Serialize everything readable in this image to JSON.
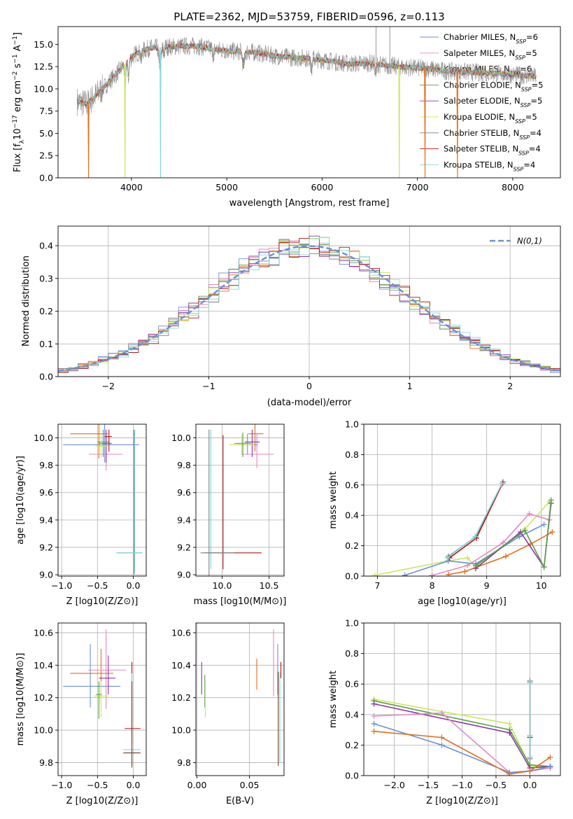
{
  "colors": {
    "blue": "#6a8fd8",
    "orange": "#e0701c",
    "green": "#5a9e48",
    "red": "#b81414",
    "purple": "#8a35a8",
    "brown": "#6b3e24",
    "pink": "#e586c4",
    "grey": "#7d7d7d",
    "lime": "#c8e85a",
    "cyan": "#7fd9e0",
    "gridline": "#b0b0b0"
  },
  "chart_data": [
    {
      "id": "spectrum",
      "type": "line",
      "title": "PLATE=2362, MJD=53759, FIBERID=0596, z=0.113",
      "xlabel": "wavelength [Angstrom, rest frame]",
      "ylabel_parts": [
        "Flux [f",
        "λ",
        "10",
        "−17",
        " erg cm",
        "−2",
        " s",
        "−1",
        " A",
        "−1",
        "]"
      ],
      "xlim": [
        3230,
        8500
      ],
      "ylim": [
        0,
        17
      ],
      "xticks": [
        4000,
        5000,
        6000,
        7000,
        8000
      ],
      "yticks": [
        0.0,
        2.5,
        5.0,
        7.5,
        10.0,
        12.5,
        15.0
      ],
      "grid": false,
      "legend_position": "upper-right",
      "series_color_keys": [
        "blue",
        "pink",
        "orange",
        "green",
        "purple",
        "lime",
        "grey",
        "red",
        "cyan"
      ],
      "legend": [
        {
          "base": "Chabrier MILES, N",
          "sub": "SSP",
          "val": "=6",
          "color": "blue"
        },
        {
          "base": "Salpeter MILES, N",
          "sub": "SSP",
          "val": "=5",
          "color": "pink"
        },
        {
          "base": "Kroupa MILES, N",
          "sub": "SSP",
          "val": "=6",
          "color": "orange"
        },
        {
          "base": "Chabrier ELODIE, N",
          "sub": "SSP",
          "val": "=5",
          "color": "green"
        },
        {
          "base": "Salpeter ELODIE, N",
          "sub": "SSP",
          "val": "=5",
          "color": "purple"
        },
        {
          "base": "Kroupa ELODIE, N",
          "sub": "SSP",
          "val": "=5",
          "color": "lime"
        },
        {
          "base": "Chabrier STELIB, N",
          "sub": "SSP",
          "val": "=4",
          "color": "grey"
        },
        {
          "base": "Salpeter STELIB, N",
          "sub": "SSP",
          "val": "=4",
          "color": "red"
        },
        {
          "base": "Kroupa STELIB, N",
          "sub": "SSP",
          "val": "=4",
          "color": "cyan"
        }
      ],
      "continuum_x": [
        3430,
        3530,
        3650,
        3750,
        3850,
        3950,
        4050,
        4200,
        4350,
        4500,
        4700,
        4900,
        5100,
        5300,
        5500,
        5700,
        5900,
        6100,
        6300,
        6500,
        6700,
        6900,
        7100,
        7300,
        7500,
        7700,
        7900,
        8100,
        8240
      ],
      "continuum_y": [
        8.6,
        8.3,
        9.5,
        10.6,
        11.8,
        13.0,
        14.0,
        14.6,
        14.7,
        14.8,
        14.8,
        14.4,
        14.2,
        14.1,
        13.7,
        13.5,
        13.4,
        13.1,
        12.8,
        12.9,
        12.6,
        12.4,
        12.3,
        12.0,
        11.9,
        11.8,
        11.7,
        11.5,
        11.4
      ],
      "drops": [
        {
          "x": 3550,
          "color": "orange"
        },
        {
          "x": 3933,
          "color": "lime"
        },
        {
          "x": 4305,
          "color": "cyan"
        },
        {
          "x": 6810,
          "color": "lime"
        },
        {
          "x": 7080,
          "color": "orange"
        },
        {
          "x": 7420,
          "color": "orange"
        }
      ],
      "spikes": [
        {
          "x": 6565,
          "top": 17.0,
          "color": "grey"
        },
        {
          "x": 6710,
          "top": 17.0,
          "color": "grey"
        },
        {
          "x": 4862,
          "top": 14.6,
          "color": "grey"
        }
      ]
    },
    {
      "id": "residuals",
      "type": "step",
      "xlabel": "(data-model)/error",
      "ylabel": "Normed distribution",
      "xlim": [
        -2.5,
        2.5
      ],
      "ylim": [
        0,
        0.46
      ],
      "xticks": [
        -2,
        -1,
        0,
        1,
        2
      ],
      "xtick_labels": [
        "−2",
        "−1",
        "0",
        "1",
        "2"
      ],
      "yticks": [
        0.0,
        0.1,
        0.2,
        0.3,
        0.4
      ],
      "ytick_labels": [
        "0.0",
        "0.1",
        "0.2",
        "0.3",
        "0.4"
      ],
      "grid": true,
      "legend_position": "upper-right",
      "legend_label": "N(0,1)",
      "bin_width": 0.1,
      "series_color_keys": [
        "blue",
        "pink",
        "orange",
        "green",
        "purple",
        "lime",
        "grey",
        "red",
        "cyan"
      ],
      "gaussian": {
        "mean": 0,
        "sigma": 1,
        "color": "blue"
      }
    },
    {
      "id": "age_vs_z",
      "type": "scatter",
      "xlabel": "Z [log10(Z/Z⊙)]",
      "ylabel": "age  [log10(age/yr)]",
      "xlim": [
        -1.05,
        0.18
      ],
      "ylim": [
        8.99,
        10.1
      ],
      "xticks": [
        -1.0,
        -0.5,
        0.0
      ],
      "xtick_labels": [
        "−1.0",
        "−0.5",
        "0.0"
      ],
      "yticks": [
        9.0,
        9.2,
        9.4,
        9.6,
        9.8,
        10.0
      ],
      "ytick_labels": [
        "9.0",
        "9.2",
        "9.4",
        "9.6",
        "9.8",
        "10.0"
      ],
      "grid": true,
      "points": [
        {
          "c": "blue",
          "x": -0.4,
          "y": 9.95,
          "x0": -0.98,
          "x1": 0.08,
          "y0": 9.82,
          "y1": 10.1
        },
        {
          "c": "orange",
          "x": -0.48,
          "y": 10.03,
          "x0": -0.88,
          "x1": -0.35,
          "y0": 9.85,
          "y1": 10.12
        },
        {
          "c": "pink",
          "x": -0.38,
          "y": 9.88,
          "x0": -0.62,
          "x1": -0.15,
          "y0": 9.76,
          "y1": 10.03
        },
        {
          "c": "purple",
          "x": -0.38,
          "y": 9.96,
          "x0": -0.48,
          "x1": -0.3,
          "y0": 9.82,
          "y1": 10.06
        },
        {
          "c": "green",
          "x": -0.42,
          "y": 9.97,
          "x0": -0.5,
          "x1": -0.33,
          "y0": 9.86,
          "y1": 10.06
        },
        {
          "c": "lime",
          "x": -0.45,
          "y": 9.94,
          "x0": -0.53,
          "x1": -0.36,
          "y0": 9.86,
          "y1": 10.03
        },
        {
          "c": "red",
          "x": -0.34,
          "y": 10.01,
          "x0": -0.4,
          "x1": -0.3,
          "y0": 9.9,
          "y1": 10.06
        },
        {
          "c": "grey",
          "x": 0.01,
          "y": 9.16,
          "x0": -0.22,
          "x1": 0.12,
          "y0": 9.0,
          "y1": 10.06
        },
        {
          "c": "cyan",
          "x": 0.02,
          "y": 9.16,
          "x0": -0.24,
          "x1": 0.13,
          "y0": 9.02,
          "y1": 10.06
        }
      ]
    },
    {
      "id": "age_vs_mass",
      "type": "scatter",
      "xlabel": "mass [log10(M/M⊙)]",
      "ylabel": "",
      "xlim": [
        9.72,
        10.66
      ],
      "ylim": [
        8.99,
        10.1
      ],
      "xticks": [
        10.0,
        10.5
      ],
      "xtick_labels": [
        "10.0",
        "10.5"
      ],
      "yticks": [
        9.0,
        9.2,
        9.4,
        9.6,
        9.8,
        10.0
      ],
      "ytick_labels": [
        "9.0",
        "9.2",
        "9.4",
        "9.6",
        "9.8",
        "10.0"
      ],
      "grid": true,
      "points": [
        {
          "c": "blue",
          "x": 10.27,
          "y": 9.95,
          "x0": 10.16,
          "x1": 10.38,
          "y0": 9.88,
          "y1": 10.03
        },
        {
          "c": "orange",
          "x": 10.35,
          "y": 10.03,
          "x0": 10.28,
          "x1": 10.44,
          "y0": 9.9,
          "y1": 10.12
        },
        {
          "c": "pink",
          "x": 10.37,
          "y": 9.88,
          "x0": 10.2,
          "x1": 10.55,
          "y0": 9.78,
          "y1": 10.03
        },
        {
          "c": "purple",
          "x": 10.32,
          "y": 9.97,
          "x0": 10.24,
          "x1": 10.4,
          "y0": 9.86,
          "y1": 10.06
        },
        {
          "c": "lime",
          "x": 10.21,
          "y": 9.95,
          "x0": 10.08,
          "x1": 10.34,
          "y0": 9.88,
          "y1": 10.02
        },
        {
          "c": "green",
          "x": 10.22,
          "y": 9.96,
          "x0": 10.13,
          "x1": 10.31,
          "y0": 9.86,
          "y1": 10.04
        },
        {
          "c": "red",
          "x": 10.01,
          "y": 9.16,
          "x0": 9.82,
          "x1": 10.42,
          "y0": 9.04,
          "y1": 10.02
        },
        {
          "c": "cyan",
          "x": 9.88,
          "y": 9.16,
          "x0": 9.8,
          "x1": 10.13,
          "y0": 9.04,
          "y1": 10.06
        },
        {
          "c": "grey",
          "x": 9.86,
          "y": 9.16,
          "x0": 9.77,
          "x1": 10.13,
          "y0": 8.99,
          "y1": 10.06
        }
      ]
    },
    {
      "id": "weight_vs_age",
      "type": "line",
      "xlabel": "age  [log10(age/yr)]",
      "ylabel": "mass weight",
      "xlim": [
        6.75,
        10.35
      ],
      "ylim": [
        0,
        1.0
      ],
      "xticks": [
        7,
        8,
        9,
        10
      ],
      "xtick_labels": [
        "7",
        "8",
        "9",
        "10"
      ],
      "yticks": [
        0.0,
        0.2,
        0.4,
        0.6,
        0.8,
        1.0
      ],
      "ytick_labels": [
        "0.0",
        "0.2",
        "0.4",
        "0.6",
        "0.8",
        "1.0"
      ],
      "grid": true,
      "series": [
        {
          "c": "lime",
          "x": [
            6.95,
            8.28,
            8.65,
            8.8,
            9.7,
            10.15
          ],
          "y": [
            0.005,
            0.1,
            0.12,
            0.06,
            0.31,
            0.49
          ]
        },
        {
          "c": "pink",
          "x": [
            8.0,
            8.65,
            9.3,
            9.78,
            10.15
          ],
          "y": [
            0.005,
            0.07,
            0.22,
            0.41,
            0.37
          ]
        },
        {
          "c": "blue",
          "x": [
            7.5,
            8.3,
            8.8,
            9.6,
            10.05
          ],
          "y": [
            0.005,
            0.1,
            0.08,
            0.26,
            0.34
          ]
        },
        {
          "c": "orange",
          "x": [
            8.3,
            8.6,
            9.35,
            9.8,
            10.2
          ],
          "y": [
            0.01,
            0.03,
            0.13,
            0.21,
            0.29
          ]
        },
        {
          "c": "purple",
          "x": [
            8.8,
            9.62,
            10.05,
            10.18
          ],
          "y": [
            0.05,
            0.29,
            0.06,
            0.48
          ]
        },
        {
          "c": "green",
          "x": [
            8.8,
            9.7,
            10.05,
            10.18
          ],
          "y": [
            0.07,
            0.3,
            0.06,
            0.5
          ]
        },
        {
          "c": "grey",
          "x": [
            8.3,
            8.8,
            9.3
          ],
          "y": [
            0.13,
            0.26,
            0.62
          ]
        },
        {
          "c": "red",
          "x": [
            8.32,
            8.81,
            9.29
          ],
          "y": [
            0.12,
            0.25,
            0.61
          ]
        },
        {
          "c": "cyan",
          "x": [
            8.28,
            8.79,
            9.28
          ],
          "y": [
            0.12,
            0.26,
            0.61
          ]
        }
      ]
    },
    {
      "id": "mass_vs_z",
      "type": "scatter",
      "xlabel": "Z [log10(Z/Z⊙)]",
      "ylabel": "mass [log10(M/M⊙)]",
      "xlim": [
        -1.05,
        0.18
      ],
      "ylim": [
        9.72,
        10.66
      ],
      "xticks": [
        -1.0,
        -0.5,
        0.0
      ],
      "xtick_labels": [
        "−1.0",
        "−0.5",
        "0.0"
      ],
      "yticks": [
        9.8,
        10.0,
        10.2,
        10.4,
        10.6
      ],
      "ytick_labels": [
        "9.8",
        "10.0",
        "10.2",
        "10.4",
        "10.6"
      ],
      "grid": true,
      "points": [
        {
          "c": "blue",
          "x": -0.6,
          "y": 10.27,
          "x0": -0.98,
          "x1": -0.18,
          "y0": 10.14,
          "y1": 10.53
        },
        {
          "c": "orange",
          "x": -0.45,
          "y": 10.35,
          "x0": -0.88,
          "x1": -0.28,
          "y0": 10.16,
          "y1": 10.5
        },
        {
          "c": "pink",
          "x": -0.38,
          "y": 10.37,
          "x0": -0.63,
          "x1": -0.1,
          "y0": 10.13,
          "y1": 10.62
        },
        {
          "c": "purple",
          "x": -0.35,
          "y": 10.32,
          "x0": -0.48,
          "x1": -0.25,
          "y0": 10.22,
          "y1": 10.46
        },
        {
          "c": "lime",
          "x": -0.45,
          "y": 10.21,
          "x0": -0.55,
          "x1": -0.35,
          "y0": 10.08,
          "y1": 10.3
        },
        {
          "c": "green",
          "x": -0.48,
          "y": 10.22,
          "x0": -0.52,
          "x1": -0.44,
          "y0": 10.07,
          "y1": 10.3
        },
        {
          "c": "red",
          "x": -0.02,
          "y": 10.01,
          "x0": -0.12,
          "x1": 0.1,
          "y0": 9.92,
          "y1": 10.42
        },
        {
          "c": "cyan",
          "x": -0.02,
          "y": 9.88,
          "x0": -0.14,
          "x1": 0.1,
          "y0": 9.8,
          "y1": 10.35
        },
        {
          "c": "brown",
          "x": -0.02,
          "y": 9.86,
          "x0": -0.14,
          "x1": 0.1,
          "y0": 9.77,
          "y1": 10.3
        }
      ]
    },
    {
      "id": "mass_vs_ebv",
      "type": "scatter",
      "xlabel": "E(B-V)",
      "ylabel": "",
      "xlim": [
        -0.001,
        0.083
      ],
      "ylim": [
        9.72,
        10.66
      ],
      "xticks": [
        0.0,
        0.05
      ],
      "xtick_labels": [
        "0.00",
        "0.05"
      ],
      "yticks": [
        9.8,
        10.0,
        10.2,
        10.4,
        10.6
      ],
      "ytick_labels": [
        "9.8",
        "10.0",
        "10.2",
        "10.4",
        "10.6"
      ],
      "grid": true,
      "bars": [
        {
          "c": "purple",
          "x": 0.0045,
          "y0": 10.22,
          "y1": 10.42
        },
        {
          "c": "green",
          "x": 0.0075,
          "y0": 10.14,
          "y1": 10.34
        },
        {
          "c": "lime",
          "x": 0.008,
          "y0": 10.08,
          "y1": 10.3
        },
        {
          "c": "orange",
          "x": 0.057,
          "y0": 10.25,
          "y1": 10.44
        },
        {
          "c": "pink",
          "x": 0.073,
          "y0": 10.21,
          "y1": 10.62
        },
        {
          "c": "blue",
          "x": 0.077,
          "y0": 10.22,
          "y1": 10.53
        },
        {
          "c": "brown",
          "x": 0.0775,
          "y0": 9.78,
          "y1": 10.36
        },
        {
          "c": "cyan",
          "x": 0.079,
          "y0": 9.8,
          "y1": 10.36
        },
        {
          "c": "red",
          "x": 0.08,
          "y0": 10.32,
          "y1": 10.42
        }
      ]
    },
    {
      "id": "weight_vs_z",
      "type": "line",
      "xlabel": "Z [log10(Z/Z⊙)]",
      "ylabel": "mass weight",
      "xlim": [
        -2.45,
        0.45
      ],
      "ylim": [
        0,
        1.0
      ],
      "xticks": [
        -2.0,
        -1.5,
        -1.0,
        -0.5,
        0.0
      ],
      "xtick_labels": [
        "−2.0",
        "−1.5",
        "−1.0",
        "−0.5",
        "0.0"
      ],
      "yticks": [
        0.0,
        0.2,
        0.4,
        0.6,
        0.8,
        1.0
      ],
      "ytick_labels": [
        "0.0",
        "0.2",
        "0.4",
        "0.6",
        "0.8",
        "1.0"
      ],
      "grid": true,
      "series": [
        {
          "c": "lime",
          "x": [
            -2.3,
            -0.3,
            0.0,
            0.3
          ],
          "y": [
            0.5,
            0.34,
            0.06,
            0.06
          ]
        },
        {
          "c": "green",
          "x": [
            -2.3,
            -0.3,
            0.0,
            0.3
          ],
          "y": [
            0.49,
            0.3,
            0.07,
            0.06
          ]
        },
        {
          "c": "purple",
          "x": [
            -2.3,
            -0.3,
            0.0,
            0.3
          ],
          "y": [
            0.47,
            0.28,
            0.05,
            0.06
          ]
        },
        {
          "c": "pink",
          "x": [
            -2.3,
            -1.3,
            -0.3,
            0.0,
            0.3
          ],
          "y": [
            0.39,
            0.41,
            0.02,
            0.03,
            0.05
          ]
        },
        {
          "c": "blue",
          "x": [
            -2.3,
            -1.3,
            -0.3,
            0.0,
            0.3
          ],
          "y": [
            0.34,
            0.2,
            0.02,
            0.03,
            0.06
          ]
        },
        {
          "c": "orange",
          "x": [
            -2.3,
            -1.3,
            -0.3,
            0.0,
            0.3
          ],
          "y": [
            0.29,
            0.25,
            0.01,
            0.03,
            0.12
          ]
        },
        {
          "c": "grey",
          "x": [
            0.0,
            0.0,
            0.0
          ],
          "y": [
            0.62,
            0.26,
            0.11
          ]
        },
        {
          "c": "red",
          "x": [
            0.0,
            0.0,
            0.0
          ],
          "y": [
            0.61,
            0.25,
            0.12
          ]
        },
        {
          "c": "cyan",
          "x": [
            0.0,
            0.0,
            0.0
          ],
          "y": [
            0.61,
            0.26,
            0.12
          ]
        }
      ]
    }
  ]
}
